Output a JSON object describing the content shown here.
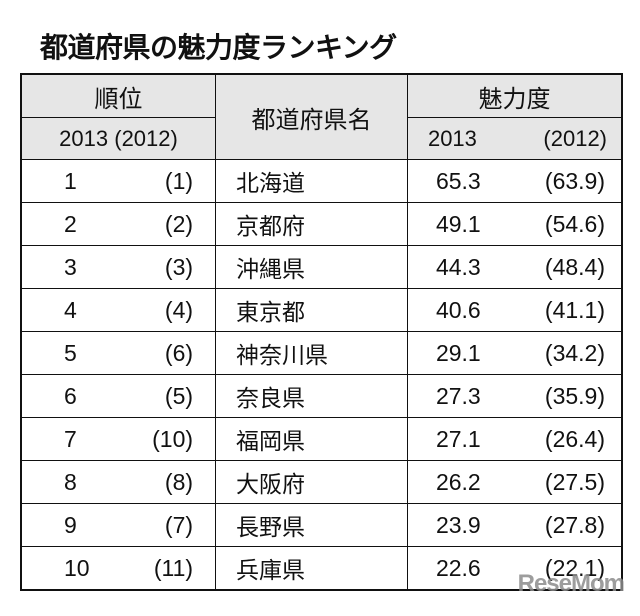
{
  "title": "都道府県の魅力度ランキング",
  "table": {
    "headers": {
      "rank": "順位",
      "rank_years": {
        "current": "2013",
        "previous": "(2012)"
      },
      "prefecture": "都道府県名",
      "score": "魅力度",
      "score_years": {
        "current": "2013",
        "previous": "(2012)"
      }
    },
    "rows": [
      {
        "rank": "1",
        "prev_rank": "(1)",
        "prefecture": "北海道",
        "score": "65.3",
        "prev_score": "(63.9)"
      },
      {
        "rank": "2",
        "prev_rank": "(2)",
        "prefecture": "京都府",
        "score": "49.1",
        "prev_score": "(54.6)"
      },
      {
        "rank": "3",
        "prev_rank": "(3)",
        "prefecture": "沖縄県",
        "score": "44.3",
        "prev_score": "(48.4)"
      },
      {
        "rank": "4",
        "prev_rank": "(4)",
        "prefecture": "東京都",
        "score": "40.6",
        "prev_score": "(41.1)"
      },
      {
        "rank": "5",
        "prev_rank": "(6)",
        "prefecture": "神奈川県",
        "score": "29.1",
        "prev_score": "(34.2)"
      },
      {
        "rank": "6",
        "prev_rank": "(5)",
        "prefecture": "奈良県",
        "score": "27.3",
        "prev_score": "(35.9)"
      },
      {
        "rank": "7",
        "prev_rank": "(10)",
        "prefecture": "福岡県",
        "score": "27.1",
        "prev_score": "(26.4)"
      },
      {
        "rank": "8",
        "prev_rank": "(8)",
        "prefecture": "大阪府",
        "score": "26.2",
        "prev_score": "(27.5)"
      },
      {
        "rank": "9",
        "prev_rank": "(7)",
        "prefecture": "長野県",
        "score": "23.9",
        "prev_score": "(27.8)"
      },
      {
        "rank": "10",
        "prev_rank": "(11)",
        "prefecture": "兵庫県",
        "score": "22.6",
        "prev_score": "(22.1)"
      }
    ]
  },
  "watermark": "ReseMom"
}
